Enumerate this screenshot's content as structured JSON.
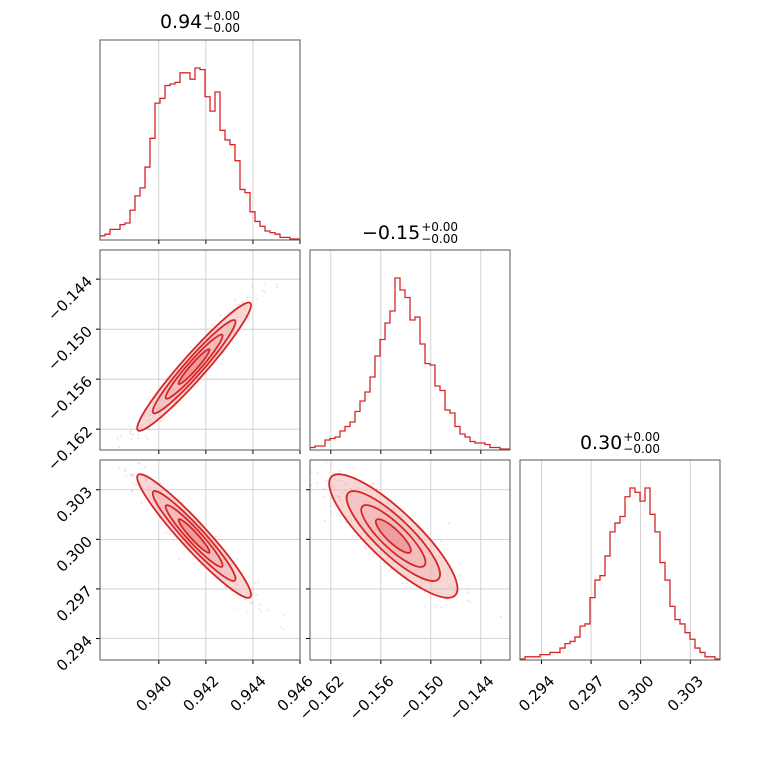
{
  "colors": {
    "series": "#d62728",
    "fill_light": "#f3b6b7",
    "fill_mid": "#ea8587",
    "scatter": "#f4a6a8",
    "grid": "#c8c8c8",
    "frame": "#555555"
  },
  "chart_data": {
    "type": "corner",
    "grid": true,
    "params": [
      "p1",
      "p2",
      "p3"
    ],
    "axes": {
      "p1": {
        "range": [
          0.9375,
          0.946
        ],
        "ticks": [
          0.94,
          0.942,
          0.944,
          0.946
        ],
        "tick_labels": [
          "0.940",
          "0.942",
          "0.944",
          "0.946"
        ]
      },
      "p2": {
        "range": [
          -0.1645,
          -0.1405
        ],
        "ticks": [
          -0.162,
          -0.156,
          -0.15,
          -0.144
        ],
        "tick_labels": [
          "−0.162",
          "−0.156",
          "−0.150",
          "−0.144"
        ]
      },
      "p3": {
        "range": [
          0.2927,
          0.3048
        ],
        "ticks": [
          0.294,
          0.297,
          0.3,
          0.303
        ],
        "tick_labels": [
          "0.294",
          "0.297",
          "0.300",
          "0.303"
        ]
      }
    },
    "titles": [
      {
        "value": "0.94",
        "plus": "+0.00",
        "minus": "−0.00"
      },
      {
        "value": "−0.15",
        "plus": "+0.00",
        "minus": "−0.00"
      },
      {
        "value": "0.30",
        "plus": "+0.00",
        "minus": "−0.00"
      }
    ],
    "histograms": [
      {
        "param": "p1",
        "edges_range": [
          0.9375,
          0.946
        ],
        "counts": [
          2,
          3,
          6,
          6,
          9,
          10,
          18,
          27,
          32,
          45,
          63,
          85,
          88,
          96,
          97,
          98,
          104,
          104,
          100,
          107,
          106,
          89,
          80,
          92,
          68,
          62,
          59,
          49,
          31,
          29,
          17,
          11,
          8,
          5,
          4,
          3,
          1,
          1,
          0,
          0
        ]
      },
      {
        "param": "p2",
        "edges_range": [
          -0.1645,
          -0.1405
        ],
        "counts": [
          1,
          2,
          2,
          6,
          7,
          8,
          12,
          15,
          18,
          25,
          32,
          38,
          48,
          62,
          73,
          84,
          92,
          114,
          106,
          101,
          86,
          88,
          70,
          57,
          56,
          42,
          39,
          26,
          24,
          15,
          10,
          8,
          5,
          4,
          4,
          3,
          1,
          1,
          0,
          0
        ]
      },
      {
        "param": "p3",
        "edges_range": [
          0.2927,
          0.3048
        ],
        "counts": [
          0,
          1,
          1,
          1,
          2,
          2,
          3,
          3,
          5,
          7,
          8,
          10,
          15,
          16,
          28,
          36,
          38,
          47,
          58,
          62,
          65,
          74,
          78,
          76,
          72,
          78,
          66,
          58,
          44,
          36,
          24,
          18,
          16,
          12,
          9,
          5,
          3,
          1,
          1,
          0
        ]
      }
    ],
    "pairs": [
      {
        "x": "p1",
        "y": "p2",
        "mean": [
          0.9415,
          -0.1545
        ],
        "sx": 0.0011,
        "sy": 0.0035,
        "rho": 0.96
      },
      {
        "x": "p1",
        "y": "p3",
        "mean": [
          0.9415,
          0.3002
        ],
        "sx": 0.0011,
        "sy": 0.0017,
        "rho": -0.95
      },
      {
        "x": "p2",
        "y": "p3",
        "mean": [
          -0.1545,
          0.3002
        ],
        "sx": 0.0035,
        "sy": 0.0017,
        "rho": -0.85
      }
    ],
    "contour_levels_sigma": [
      0.6,
      1.1,
      1.6,
      2.2
    ]
  }
}
